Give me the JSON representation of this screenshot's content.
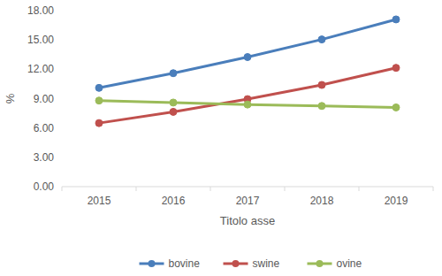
{
  "chart_data": {
    "type": "line",
    "x_label": "Titolo asse",
    "y_label": "%",
    "categories": [
      "2015",
      "2016",
      "2017",
      "2018",
      "2019"
    ],
    "series": [
      {
        "name": "bovine",
        "color": "#4a7ebb",
        "values": [
          10.1,
          11.6,
          13.25,
          15.05,
          17.1
        ]
      },
      {
        "name": "swine",
        "color": "#c0504d",
        "values": [
          6.5,
          7.65,
          8.95,
          10.4,
          12.15
        ]
      },
      {
        "name": "ovine",
        "color": "#9bbb59",
        "values": [
          8.8,
          8.6,
          8.4,
          8.25,
          8.1
        ]
      }
    ],
    "ylim": [
      0,
      18
    ],
    "yticks": [
      {
        "value": 0,
        "label": "0.00"
      },
      {
        "value": 3,
        "label": "3.00"
      },
      {
        "value": 6,
        "label": "6.00"
      },
      {
        "value": 9,
        "label": "9.00"
      },
      {
        "value": 12,
        "label": "12.00"
      },
      {
        "value": 15,
        "label": "15.00"
      },
      {
        "value": 18,
        "label": "18.00"
      }
    ],
    "grid": false,
    "legend": "bottom",
    "marker": "circle"
  }
}
